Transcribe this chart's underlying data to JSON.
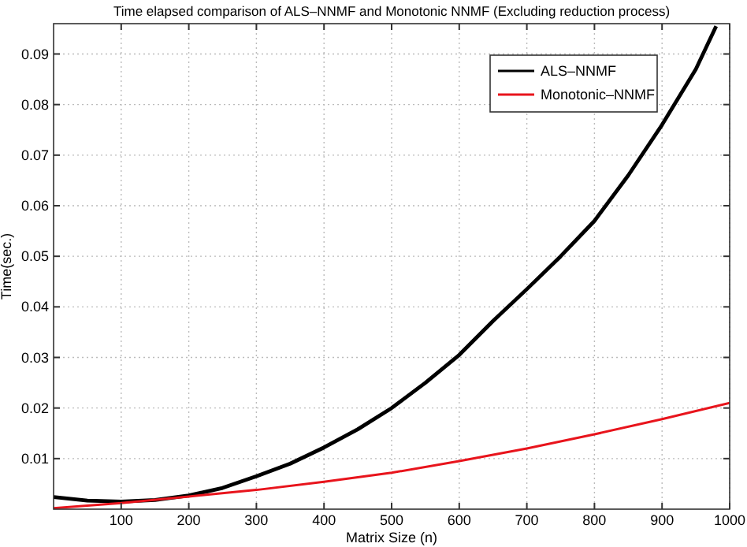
{
  "chart_data": {
    "type": "line",
    "title": "Time elapsed comparison of ALS–NNMF and Monotonic NNMF (Excluding reduction process)",
    "xlabel": "Matrix Size (n)",
    "ylabel": "Time(sec.)",
    "xlim": [
      0,
      1000
    ],
    "ylim": [
      0,
      0.096
    ],
    "xticks": [
      100,
      200,
      300,
      400,
      500,
      600,
      700,
      800,
      900,
      1000
    ],
    "yticks": [
      0.01,
      0.02,
      0.03,
      0.04,
      0.05,
      0.06,
      0.07,
      0.08,
      0.09
    ],
    "grid": true,
    "legend": "top right",
    "marker": "none",
    "line_style": "solid",
    "series": [
      {
        "name": "ALS–NNMF",
        "color": "#000000",
        "x": [
          0,
          50,
          100,
          150,
          200,
          250,
          300,
          350,
          400,
          450,
          500,
          550,
          600,
          650,
          700,
          750,
          800,
          850,
          900,
          950,
          980
        ],
        "values": [
          0.0024,
          0.0017,
          0.0015,
          0.0018,
          0.0027,
          0.0042,
          0.0065,
          0.009,
          0.0122,
          0.0158,
          0.02,
          0.025,
          0.0305,
          0.0372,
          0.0435,
          0.05,
          0.057,
          0.066,
          0.076,
          0.087,
          0.0955
        ]
      },
      {
        "name": "Monotonic–NNMF",
        "color": "#e8141c",
        "x": [
          0,
          100,
          200,
          300,
          400,
          500,
          600,
          700,
          800,
          900,
          1000
        ],
        "values": [
          0.0002,
          0.0012,
          0.0025,
          0.0038,
          0.0054,
          0.0072,
          0.0095,
          0.012,
          0.0148,
          0.0178,
          0.021
        ]
      }
    ]
  }
}
